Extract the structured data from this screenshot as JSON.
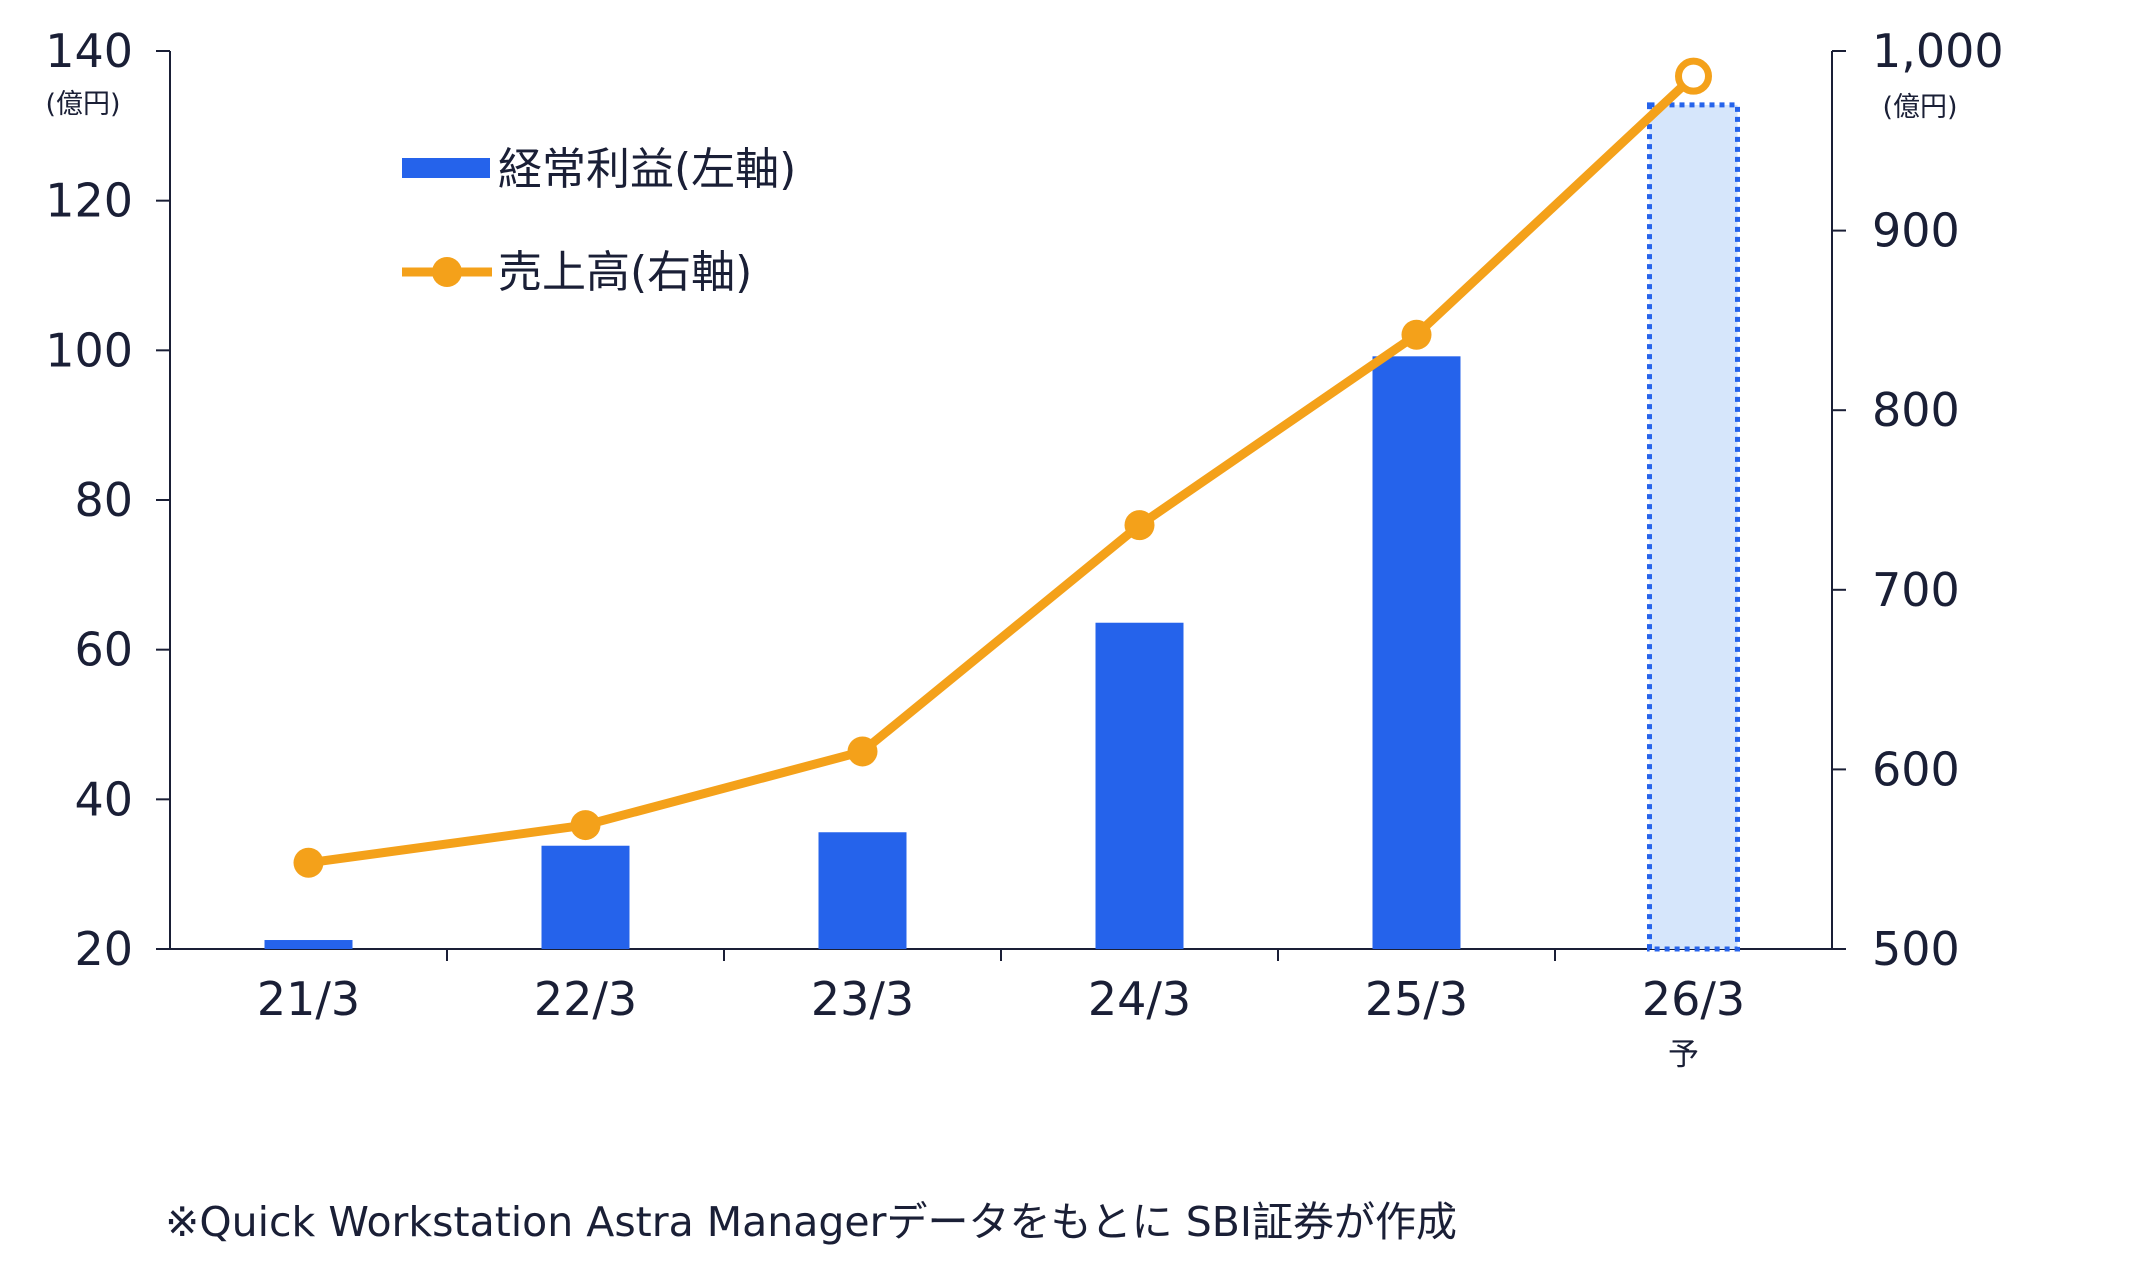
{
  "chart_data": {
    "type": "bar",
    "categories": [
      "21/3",
      "22/3",
      "23/3",
      "24/3",
      "25/3",
      "26/3"
    ],
    "forecast_marker": "予",
    "series": [
      {
        "name": "経常利益(左軸)",
        "type": "bar",
        "axis": "left",
        "values": [
          21.2,
          33.8,
          35.6,
          63.6,
          99.2,
          132.8
        ],
        "forecast_flags": [
          false,
          false,
          false,
          false,
          false,
          true
        ],
        "color": "#2563eb",
        "forecast_fill": "#d6e6fb",
        "forecast_border": "#2563eb"
      },
      {
        "name": "売上高(右軸)",
        "type": "line",
        "axis": "right",
        "values": [
          548,
          569,
          610,
          736,
          842,
          986
        ],
        "color": "#f4a11a"
      }
    ],
    "y_left": {
      "ylim": [
        20,
        140
      ],
      "ticks": [
        "20",
        "40",
        "60",
        "80",
        "100",
        "120",
        "140"
      ],
      "unit": "(億円)"
    },
    "y_right": {
      "ylim": [
        500,
        1000
      ],
      "ticks": [
        "500",
        "600",
        "700",
        "800",
        "900",
        "1,000"
      ],
      "unit": "(億円)"
    },
    "legend_position": "top-left",
    "grid": false
  },
  "source_note": "※Quick Workstation Astra Managerデータをもとに SBI証券が作成"
}
